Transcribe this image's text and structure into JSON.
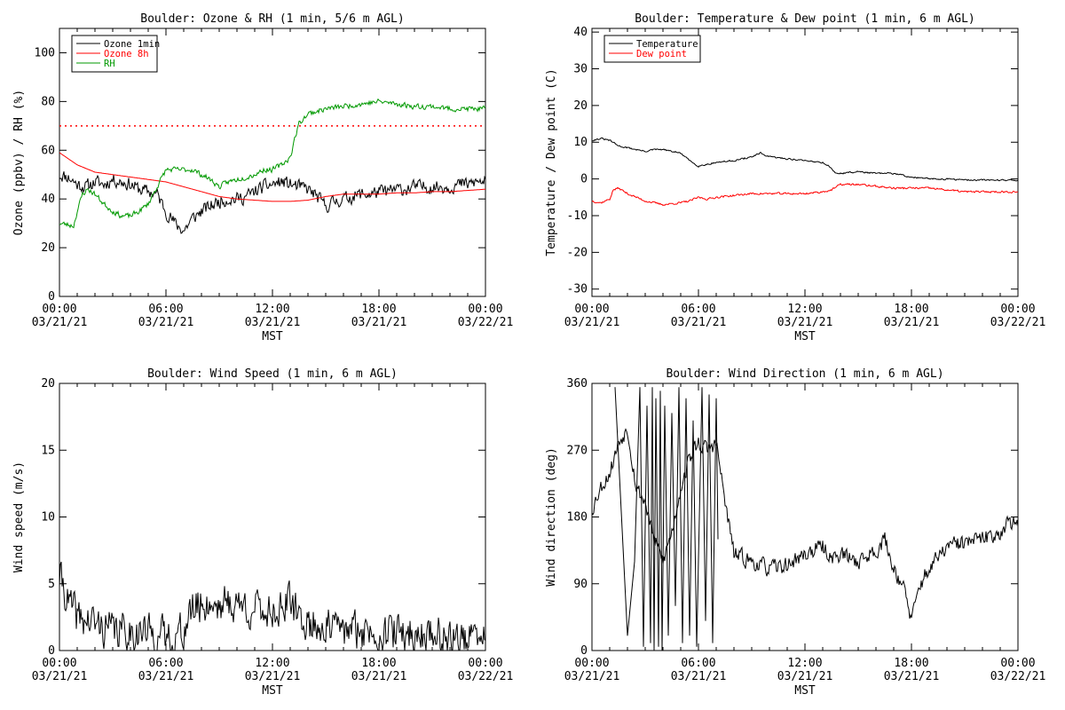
{
  "chart_data": [
    {
      "type": "line",
      "title": "Boulder: Ozone & RH (1 min, 5/6 m AGL)",
      "ylabel": "Ozone (ppbv) / RH (%)",
      "xlabel": "MST",
      "ylim": [
        0,
        110
      ],
      "yticks": [
        0,
        20,
        40,
        60,
        80,
        100
      ],
      "xlim_hours": [
        0,
        24
      ],
      "xticks": [
        {
          "h": 0,
          "t": "00:00",
          "d": "03/21/21"
        },
        {
          "h": 6,
          "t": "06:00",
          "d": "03/21/21"
        },
        {
          "h": 12,
          "t": "12:00",
          "d": "03/21/21"
        },
        {
          "h": 18,
          "t": "18:00",
          "d": "03/21/21"
        },
        {
          "h": 24,
          "t": "00:00",
          "d": "03/22/21"
        }
      ],
      "legend": "top-left",
      "reference_lines": [
        {
          "y": 70,
          "color": "#ff0000",
          "style": "dotted"
        }
      ],
      "series": [
        {
          "name": "Ozone 1min",
          "color": "#000000",
          "noise": 2.5,
          "seed": 11,
          "x": [
            0,
            0.5,
            1,
            1.5,
            2,
            2.5,
            3,
            3.5,
            4,
            4.5,
            5,
            5.5,
            6,
            6.5,
            7,
            7.5,
            8,
            8.5,
            9,
            9.5,
            10,
            10.5,
            11,
            11.5,
            12,
            12.5,
            13,
            13.5,
            14,
            14.5,
            15,
            15.5,
            16,
            16.5,
            17,
            17.5,
            18,
            18.5,
            19,
            19.5,
            20,
            20.5,
            21,
            21.5,
            22,
            22.5,
            23,
            23.5,
            24
          ],
          "y": [
            50,
            49,
            46,
            45,
            47,
            46,
            48,
            47,
            46,
            44,
            43,
            42,
            35,
            30,
            27,
            32,
            35,
            37,
            39,
            40,
            40,
            41,
            43,
            45,
            46,
            47,
            46,
            45,
            44,
            41,
            37,
            39,
            40,
            41,
            42,
            42,
            43,
            43,
            44,
            44,
            45,
            45,
            45,
            45,
            45,
            46,
            46,
            47,
            47
          ]
        },
        {
          "name": "Ozone 8h",
          "color": "#ff0000",
          "noise": 0,
          "seed": 0,
          "x": [
            0,
            1,
            2,
            3,
            4,
            5,
            6,
            7,
            8,
            9,
            10,
            11,
            12,
            13,
            14,
            15,
            16,
            17,
            18,
            19,
            20,
            21,
            22,
            23,
            24
          ],
          "y": [
            59,
            54,
            51,
            50,
            49,
            48,
            47,
            45,
            43,
            41,
            40,
            39.5,
            39,
            39,
            39.5,
            41,
            42,
            42,
            42,
            42.5,
            42.5,
            43,
            43,
            43.5,
            44
          ]
        },
        {
          "name": "RH",
          "color": "#009900",
          "noise": 1,
          "seed": 23,
          "x": [
            0,
            0.8,
            1,
            1.3,
            1.6,
            2,
            2.5,
            3,
            3.5,
            4,
            4.5,
            5,
            5.5,
            6,
            6.5,
            7,
            7.5,
            8,
            8.5,
            9,
            9.5,
            10,
            10.5,
            11,
            11.5,
            12,
            12.5,
            13,
            13.3,
            13.5,
            14,
            15,
            16,
            17,
            18,
            19,
            20,
            21,
            22,
            23,
            24
          ],
          "y": [
            30,
            29,
            35,
            42,
            44,
            42,
            38,
            35,
            33,
            33,
            35,
            38,
            45,
            52,
            52,
            52,
            52,
            50,
            48,
            45,
            47,
            48,
            49,
            50,
            52,
            52,
            54,
            57,
            66,
            71,
            75,
            77,
            78,
            79,
            80,
            79,
            78,
            78,
            77,
            77,
            77
          ]
        }
      ]
    },
    {
      "type": "line",
      "title": "Boulder: Temperature & Dew point (1 min, 6 m AGL)",
      "ylabel": "Temperature / Dew point (C)",
      "xlabel": "MST",
      "ylim": [
        -32,
        41
      ],
      "yticks": [
        -30,
        -20,
        -10,
        0,
        10,
        20,
        30,
        40
      ],
      "xlim_hours": [
        0,
        24
      ],
      "xticks": [
        {
          "h": 0,
          "t": "00:00",
          "d": "03/21/21"
        },
        {
          "h": 6,
          "t": "06:00",
          "d": "03/21/21"
        },
        {
          "h": 12,
          "t": "12:00",
          "d": "03/21/21"
        },
        {
          "h": 18,
          "t": "18:00",
          "d": "03/21/21"
        },
        {
          "h": 24,
          "t": "00:00",
          "d": "03/22/21"
        }
      ],
      "legend": "top-left",
      "series": [
        {
          "name": "Temperature",
          "color": "#000000",
          "noise": 0.2,
          "seed": 31,
          "x": [
            0,
            0.5,
            1,
            1.5,
            2,
            3,
            3.5,
            4,
            5,
            5.5,
            6,
            6.5,
            7,
            8,
            9,
            9.5,
            10,
            11,
            12,
            13,
            13.5,
            13.7,
            14,
            15,
            16,
            17,
            17.5,
            18,
            19,
            20,
            21,
            22,
            23,
            24
          ],
          "y": [
            10.5,
            11,
            10.5,
            9,
            8.5,
            7.5,
            8,
            8,
            7,
            5,
            3.5,
            4,
            4.5,
            5,
            6,
            7,
            6,
            5.5,
            5,
            4.5,
            3,
            1.5,
            1.5,
            2,
            1.5,
            1.5,
            1,
            0.5,
            0,
            0,
            -0.3,
            -0.3,
            -0.3,
            -0.3
          ]
        },
        {
          "name": "Dew point",
          "color": "#ff0000",
          "noise": 0.25,
          "seed": 37,
          "x": [
            0,
            0.5,
            1,
            1.2,
            1.5,
            2,
            3,
            4,
            5,
            5.5,
            6,
            6.5,
            7,
            8,
            9,
            10,
            11,
            12,
            13,
            13.5,
            14,
            15,
            16,
            17,
            18,
            19,
            20,
            21,
            22,
            23,
            24
          ],
          "y": [
            -6,
            -6.5,
            -5.5,
            -3,
            -2.5,
            -4,
            -6,
            -7,
            -6.5,
            -6,
            -5,
            -5.5,
            -5,
            -4.5,
            -4,
            -4,
            -4,
            -4,
            -3.5,
            -3,
            -1.5,
            -1.5,
            -2,
            -2.5,
            -2.5,
            -2.5,
            -3,
            -3.5,
            -3.5,
            -3.5,
            -3.5
          ]
        }
      ]
    },
    {
      "type": "line",
      "title": "Boulder: Wind Speed (1 min, 6 m AGL)",
      "ylabel": "Wind speed (m/s)",
      "xlabel": "MST",
      "ylim": [
        0,
        20
      ],
      "yticks": [
        0,
        5,
        10,
        15,
        20
      ],
      "xlim_hours": [
        0,
        24
      ],
      "xticks": [
        {
          "h": 0,
          "t": "00:00",
          "d": "03/21/21"
        },
        {
          "h": 6,
          "t": "06:00",
          "d": "03/21/21"
        },
        {
          "h": 12,
          "t": "12:00",
          "d": "03/21/21"
        },
        {
          "h": 18,
          "t": "18:00",
          "d": "03/21/21"
        },
        {
          "h": 24,
          "t": "00:00",
          "d": "03/22/21"
        }
      ],
      "series": [
        {
          "name": "",
          "color": "#000000",
          "noise": 1.3,
          "seed": 41,
          "floor": 0,
          "x": [
            0,
            0.2,
            0.5,
            1,
            2,
            3,
            4,
            5,
            5.5,
            6,
            6.5,
            7,
            7.5,
            8,
            9,
            10,
            11,
            12,
            13,
            13.5,
            14,
            15,
            16,
            17,
            18,
            19,
            20,
            21,
            22,
            23,
            24
          ],
          "y": [
            5.5,
            5,
            3.5,
            2.5,
            2,
            1.5,
            1.5,
            1.3,
            1.2,
            1,
            1,
            1.5,
            3,
            3.5,
            3.5,
            3.5,
            3,
            3,
            3.5,
            2.5,
            2,
            1.8,
            1.5,
            1.5,
            1.3,
            1.3,
            1.2,
            1.2,
            1,
            0.8,
            0.8
          ]
        }
      ]
    },
    {
      "type": "line",
      "title": "Boulder: Wind Direction (1 min, 6 m AGL)",
      "ylabel": "Wind direction (deg)",
      "xlabel": "MST",
      "ylim": [
        0,
        360
      ],
      "yticks": [
        0,
        90,
        180,
        270,
        360
      ],
      "xlim_hours": [
        0,
        24
      ],
      "xticks": [
        {
          "h": 0,
          "t": "00:00",
          "d": "03/21/21"
        },
        {
          "h": 6,
          "t": "06:00",
          "d": "03/21/21"
        },
        {
          "h": 12,
          "t": "12:00",
          "d": "03/21/21"
        },
        {
          "h": 18,
          "t": "18:00",
          "d": "03/21/21"
        },
        {
          "h": 24,
          "t": "00:00",
          "d": "03/22/21"
        }
      ],
      "series": [
        {
          "name": "",
          "color": "#000000",
          "noise": 10,
          "seed": 53,
          "floor": 0,
          "ceil": 360,
          "x": [
            0,
            0.3,
            0.5,
            1,
            1.5,
            2,
            2.5,
            3,
            3.5,
            4,
            4.5,
            5,
            5.5,
            6,
            6.5,
            7,
            7.5,
            8,
            9,
            10,
            11,
            12,
            13,
            13.5,
            14,
            15,
            16,
            16.5,
            17,
            17.5,
            18,
            18.5,
            19,
            20,
            21,
            22,
            22.5,
            23,
            23.5,
            24
          ],
          "y": [
            190,
            210,
            220,
            240,
            280,
            300,
            220,
            200,
            150,
            120,
            160,
            220,
            260,
            280,
            270,
            280,
            200,
            130,
            120,
            110,
            115,
            130,
            140,
            125,
            130,
            120,
            135,
            150,
            110,
            90,
            40,
            90,
            110,
            140,
            145,
            150,
            155,
            160,
            175,
            165
          ]
        },
        {
          "name": "",
          "color": "#000000",
          "noise": 0,
          "seed": 0,
          "style": "spikes",
          "x": [
            1.3,
            2.0,
            2.4,
            2.7,
            2.9,
            3.1,
            3.3,
            3.4,
            3.5,
            3.6,
            3.75,
            3.85,
            3.95,
            4.1,
            4.3,
            4.5,
            4.7,
            4.9,
            5.1,
            5.3,
            5.5,
            5.7,
            5.9,
            6.2,
            6.4,
            6.6,
            6.8,
            7.0,
            7.1
          ],
          "y": [
            355,
            20,
            120,
            355,
            5,
            330,
            10,
            355,
            0,
            340,
            5,
            350,
            0,
            330,
            20,
            320,
            60,
            355,
            10,
            340,
            20,
            310,
            5,
            355,
            40,
            345,
            10,
            340,
            150
          ]
        }
      ]
    }
  ]
}
